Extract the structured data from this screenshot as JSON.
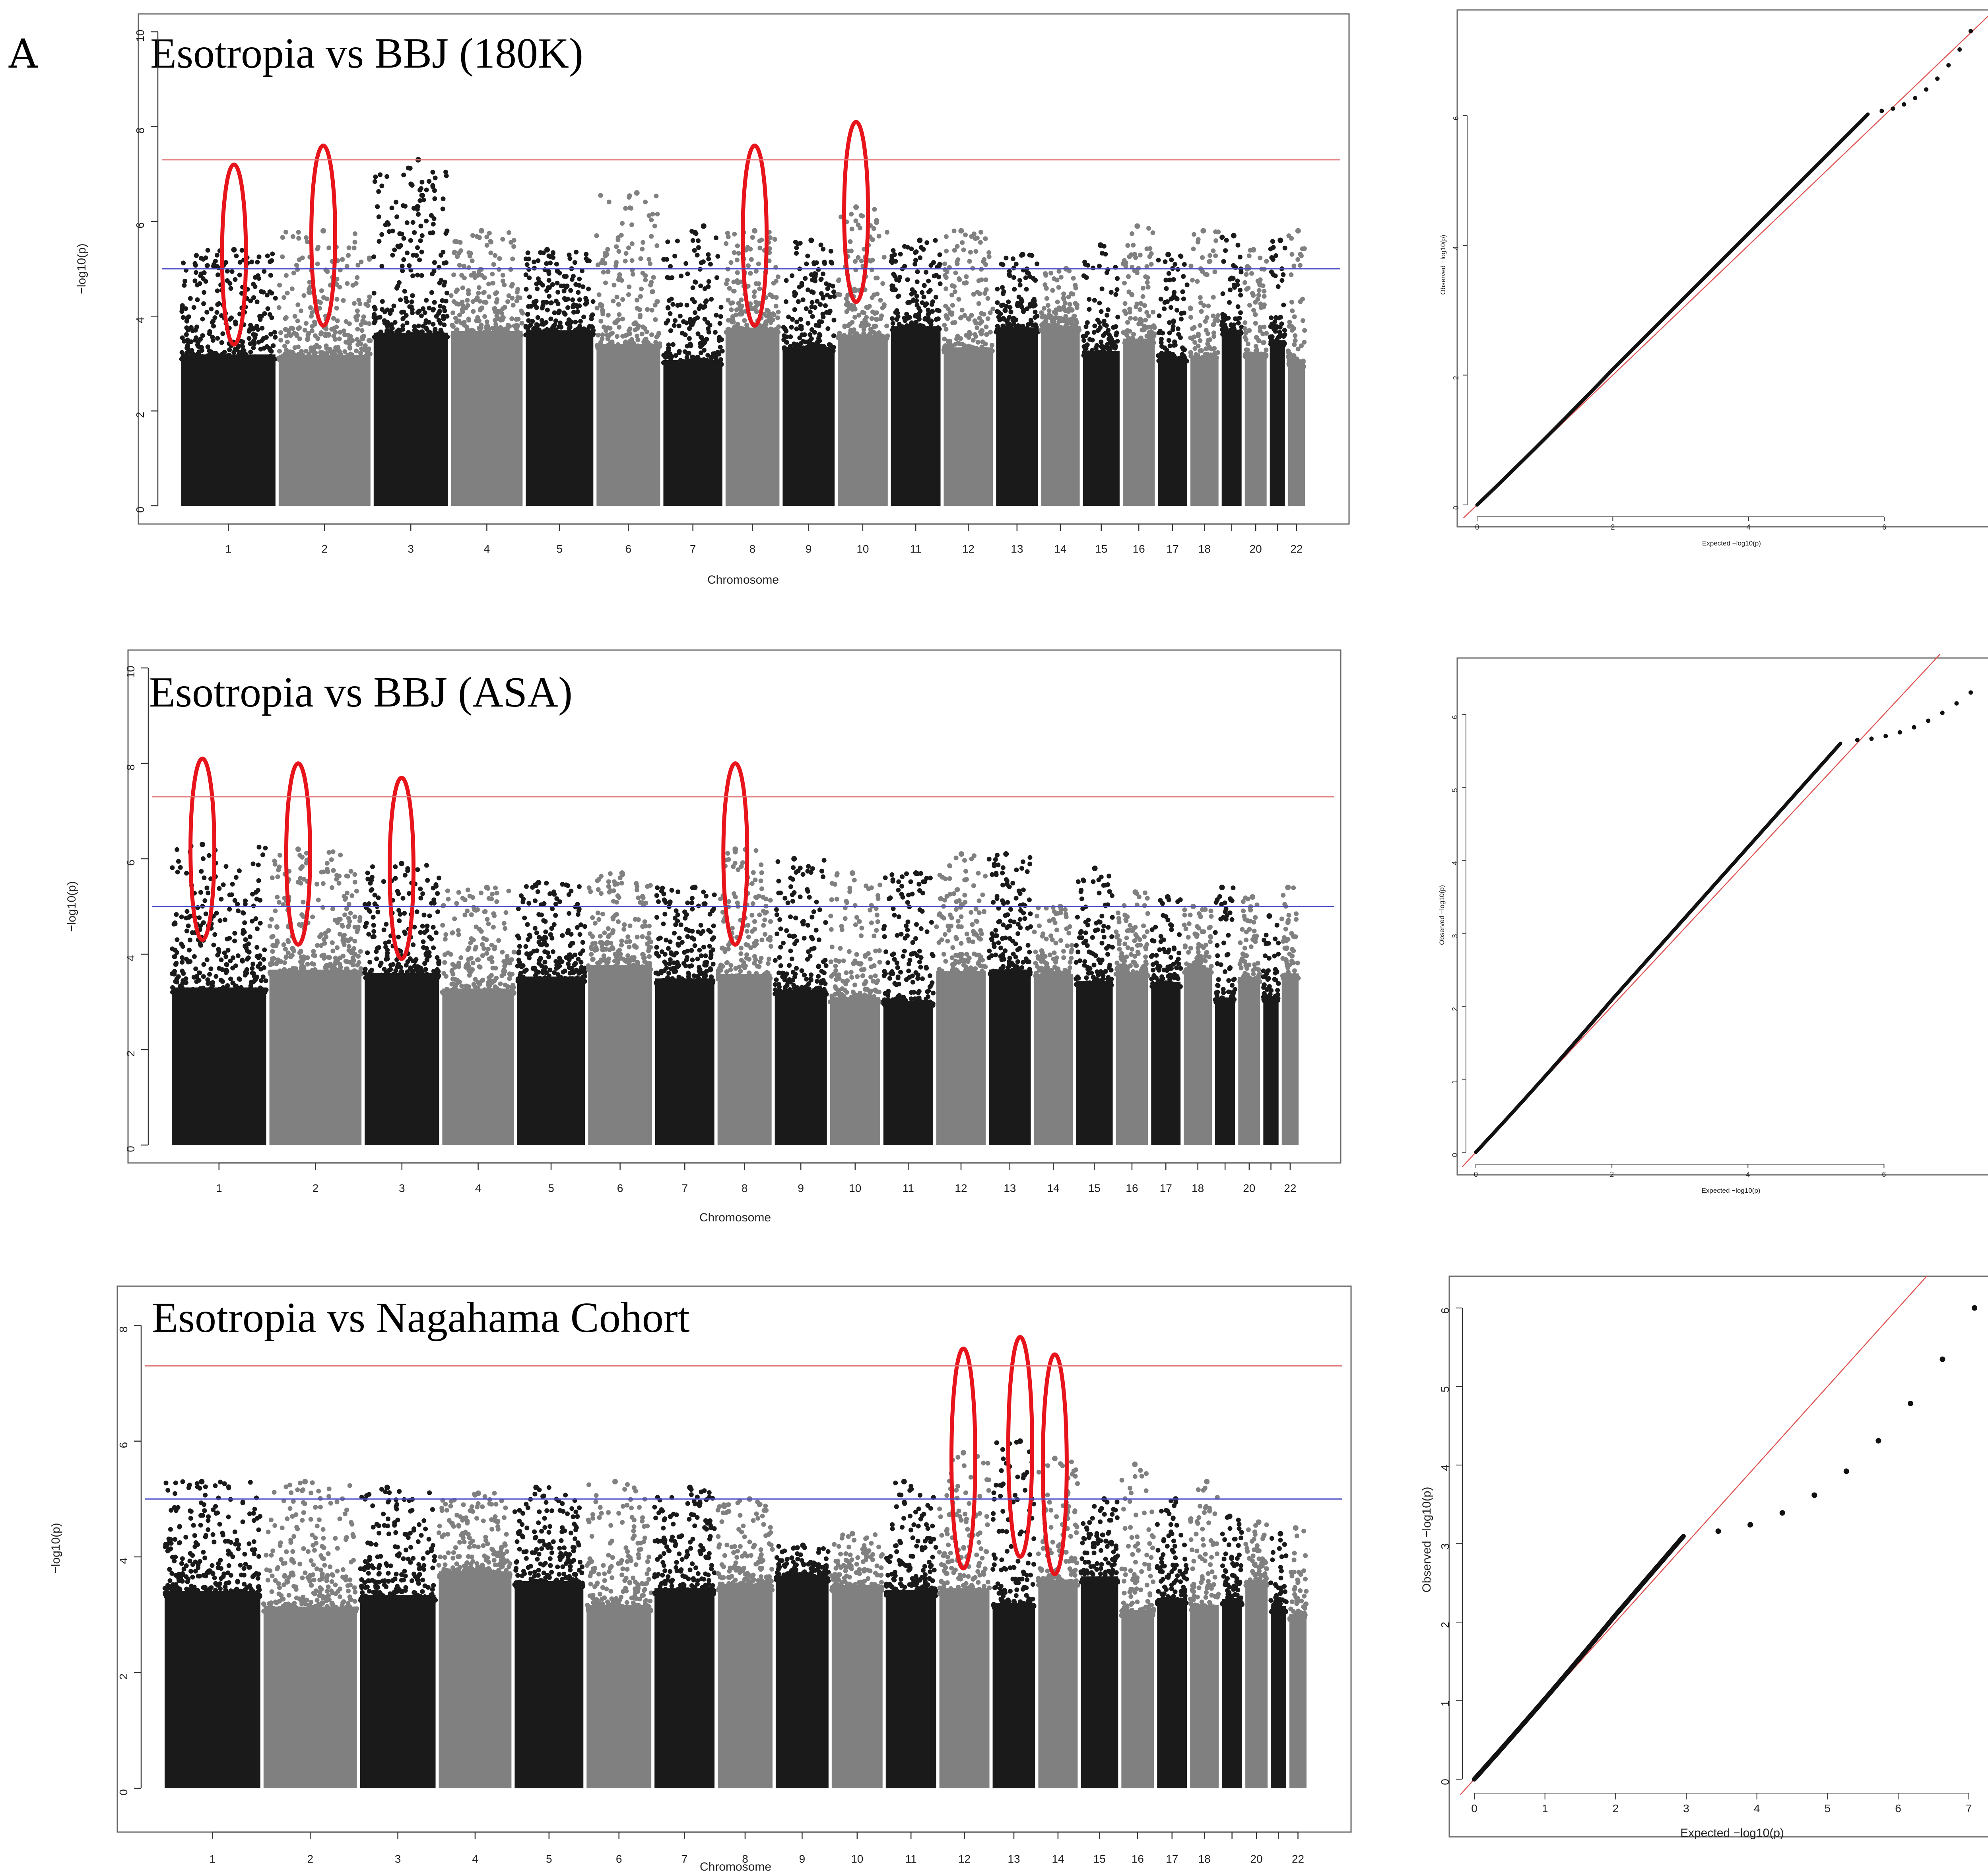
{
  "figure": {
    "panel_label": "A"
  },
  "chart_data": [
    {
      "type": "scatter",
      "subtype": "manhattan",
      "title": "Esotropia vs BBJ (180K)",
      "xlabel": "Chromosome",
      "ylabel": "−log10(p)",
      "ylim": [
        0,
        10
      ],
      "yticks": [
        0,
        2,
        4,
        6,
        8,
        10
      ],
      "genome_wide_line": 7.3,
      "suggestive_line": 5.0,
      "chromosomes": [
        "1",
        "2",
        "3",
        "4",
        "5",
        "6",
        "7",
        "8",
        "9",
        "10",
        "11",
        "12",
        "13",
        "14",
        "15",
        "16",
        "17",
        "18",
        "19",
        "20",
        "21",
        "22"
      ],
      "chromosome_ticks": [
        "1",
        "2",
        "3",
        "4",
        "5",
        "6",
        "7",
        "8",
        "9",
        "10",
        "11",
        "12",
        "13",
        "14",
        "15",
        "16",
        "17",
        "18",
        "",
        "20",
        "",
        "22"
      ],
      "chrom_peaks": [
        5.4,
        5.8,
        7.3,
        5.8,
        5.4,
        6.6,
        5.9,
        5.8,
        5.6,
        6.3,
        5.6,
        5.8,
        5.3,
        5.0,
        5.5,
        5.9,
        5.3,
        5.8,
        5.7,
        5.4,
        5.6,
        5.8
      ],
      "highlighted_chromosomes": [
        "1",
        "2",
        "8",
        "10"
      ]
    },
    {
      "type": "scatter",
      "subtype": "qq",
      "xlabel": "Expected −log10(p)",
      "ylabel": "Observed −log10(p)",
      "xticks": [
        0,
        2,
        4,
        6
      ],
      "yticks": [
        0,
        2,
        4,
        6
      ],
      "xlim": [
        0,
        7.5
      ],
      "ylim": [
        0,
        7.4
      ],
      "max_observed": 7.3,
      "inflation_deviation_start": 5.8
    },
    {
      "type": "scatter",
      "subtype": "manhattan",
      "title": "Esotropia vs BBJ (ASA)",
      "xlabel": "Chromosome",
      "ylabel": "−log10(p)",
      "ylim": [
        0,
        10
      ],
      "yticks": [
        0,
        2,
        4,
        6,
        8,
        10
      ],
      "genome_wide_line": 7.3,
      "suggestive_line": 5.0,
      "chromosomes": [
        "1",
        "2",
        "3",
        "4",
        "5",
        "6",
        "7",
        "8",
        "9",
        "10",
        "11",
        "12",
        "13",
        "14",
        "15",
        "16",
        "17",
        "18",
        "19",
        "20",
        "21",
        "22"
      ],
      "chromosome_ticks": [
        "1",
        "2",
        "3",
        "4",
        "5",
        "6",
        "7",
        "8",
        "9",
        "10",
        "11",
        "12",
        "13",
        "14",
        "15",
        "16",
        "17",
        "18",
        "",
        "20",
        "",
        "22"
      ],
      "chrom_peaks": [
        6.3,
        6.2,
        5.9,
        5.4,
        5.5,
        5.7,
        5.4,
        6.2,
        6.0,
        5.7,
        5.7,
        6.1,
        6.1,
        5.0,
        5.8,
        5.3,
        5.2,
        5.0,
        5.4,
        5.2,
        4.8,
        5.4
      ],
      "highlighted_chromosomes": [
        "1",
        "2",
        "3",
        "8"
      ]
    },
    {
      "type": "scatter",
      "subtype": "qq",
      "xlabel": "Expected −log10(p)",
      "ylabel": "Observed −log10(p)",
      "xticks": [
        0,
        2,
        4,
        6
      ],
      "yticks": [
        0,
        1,
        2,
        3,
        4,
        5,
        6
      ],
      "xlim": [
        0,
        7.5
      ],
      "ylim": [
        0,
        6.5
      ],
      "max_observed": 6.3,
      "inflation_deviation_start": 5.4
    },
    {
      "type": "scatter",
      "subtype": "manhattan",
      "title": "Esotropia vs Nagahama Cohort",
      "xlabel": "Chromosome",
      "ylabel": "−log10(p)",
      "ylim": [
        0,
        8.3
      ],
      "yticks": [
        0,
        2,
        4,
        6,
        8
      ],
      "genome_wide_line": 7.3,
      "suggestive_line": 5.0,
      "chromosomes": [
        "1",
        "2",
        "3",
        "4",
        "5",
        "6",
        "7",
        "8",
        "9",
        "10",
        "11",
        "12",
        "13",
        "14",
        "15",
        "16",
        "17",
        "18",
        "19",
        "20",
        "21",
        "22"
      ],
      "chromosome_ticks": [
        "1",
        "2",
        "3",
        "4",
        "5",
        "6",
        "7",
        "8",
        "9",
        "10",
        "11",
        "12",
        "13",
        "14",
        "15",
        "16",
        "17",
        "18",
        "",
        "20",
        "",
        "22"
      ],
      "chrom_peaks": [
        5.3,
        5.3,
        5.2,
        5.1,
        5.2,
        5.3,
        5.2,
        5.0,
        4.2,
        4.4,
        5.3,
        5.8,
        6.0,
        5.7,
        5.0,
        5.6,
        5.0,
        5.3,
        4.7,
        4.6,
        4.4,
        4.5
      ],
      "highlighted_chromosomes": [
        "12",
        "13",
        "14"
      ]
    },
    {
      "type": "scatter",
      "subtype": "qq",
      "xlabel": "Expected −log10(p)",
      "ylabel": "Observed −log10(p)",
      "xticks": [
        0,
        1,
        2,
        3,
        4,
        5,
        6,
        7
      ],
      "yticks": [
        0,
        1,
        2,
        3,
        4,
        5,
        6
      ],
      "xlim": [
        0,
        7.3
      ],
      "ylim": [
        0,
        6.1
      ],
      "max_observed": 6.0,
      "inflation_deviation_start": 3.0
    }
  ]
}
